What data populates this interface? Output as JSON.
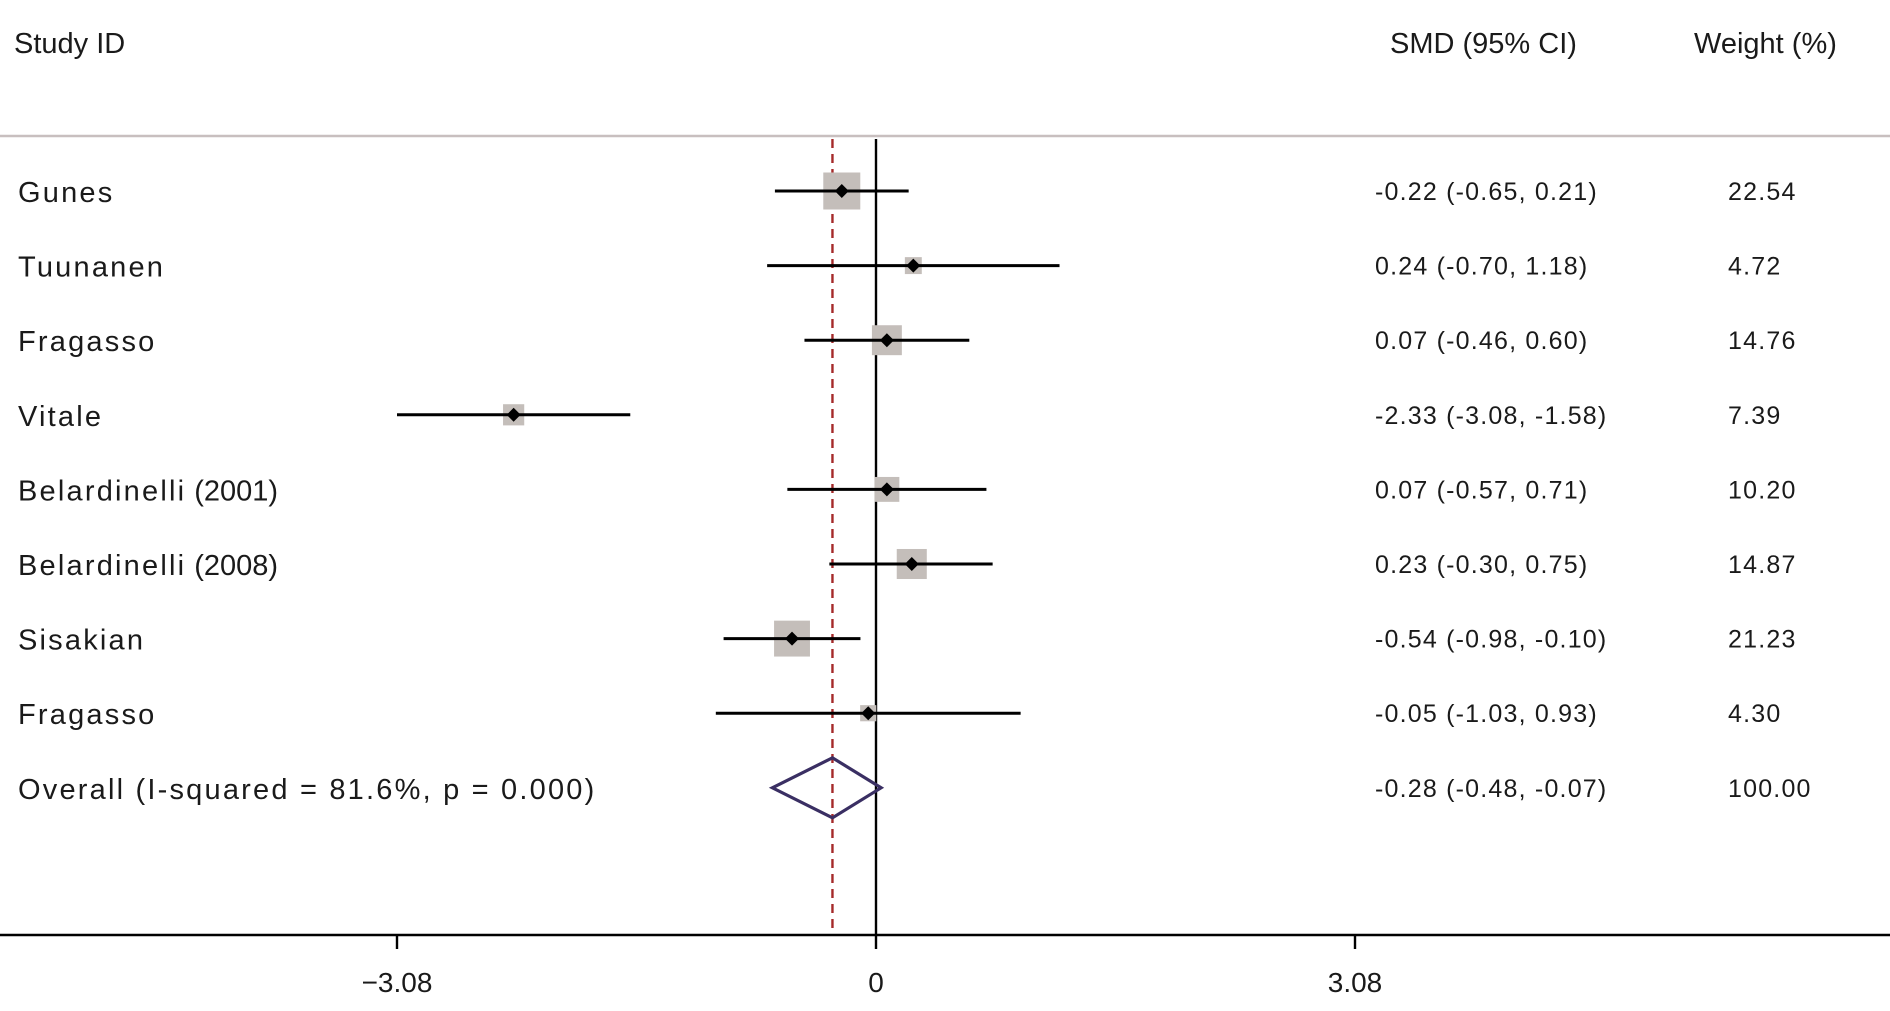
{
  "chart_data": {
    "type": "forest",
    "headers": {
      "study": "Study ID",
      "estimate": "SMD (95% CI)",
      "weight": "Weight (%)"
    },
    "studies": [
      {
        "label": "Gunes",
        "smd": -0.22,
        "lo": -0.65,
        "hi": 0.21,
        "ci_text": "-0.22 (-0.65, 0.21)",
        "weight": 22.54,
        "weight_text": "22.54"
      },
      {
        "label": "Tuunanen",
        "smd": 0.24,
        "lo": -0.7,
        "hi": 1.18,
        "ci_text": "0.24 (-0.70, 1.18)",
        "weight": 4.72,
        "weight_text": "4.72"
      },
      {
        "label": "Fragasso",
        "smd": 0.07,
        "lo": -0.46,
        "hi": 0.6,
        "ci_text": "0.07 (-0.46, 0.60)",
        "weight": 14.76,
        "weight_text": "14.76"
      },
      {
        "label": "Vitale",
        "smd": -2.33,
        "lo": -3.08,
        "hi": -1.58,
        "ci_text": "-2.33 (-3.08, -1.58)",
        "weight": 7.39,
        "weight_text": "7.39"
      },
      {
        "label": "Belardinelli",
        "year": "(2001)",
        "smd": 0.07,
        "lo": -0.57,
        "hi": 0.71,
        "ci_text": "0.07 (-0.57, 0.71)",
        "weight": 10.2,
        "weight_text": "10.20"
      },
      {
        "label": "Belardinelli",
        "year": "(2008)",
        "smd": 0.23,
        "lo": -0.3,
        "hi": 0.75,
        "ci_text": "0.23 (-0.30, 0.75)",
        "weight": 14.87,
        "weight_text": "14.87"
      },
      {
        "label": "Sisakian",
        "smd": -0.54,
        "lo": -0.98,
        "hi": -0.1,
        "ci_text": "-0.54 (-0.98, -0.10)",
        "weight": 21.23,
        "weight_text": "21.23"
      },
      {
        "label": "Fragasso",
        "smd": -0.05,
        "lo": -1.03,
        "hi": 0.93,
        "ci_text": "-0.05 (-1.03, 0.93)",
        "weight": 4.3,
        "weight_text": "4.30"
      }
    ],
    "overall": {
      "label": "Overall  (I-squared = 81.6%, p = 0.000)",
      "smd": -0.28,
      "lo": -0.48,
      "hi": -0.07,
      "ci_text": "-0.28 (-0.48, -0.07)",
      "weight": 100.0,
      "weight_text": "100.00"
    },
    "x_ticks": [
      {
        "value": -3.08,
        "label": "−3.08"
      },
      {
        "value": 0,
        "label": "0"
      },
      {
        "value": 3.08,
        "label": "3.08"
      }
    ],
    "null_line": 0,
    "colors": {
      "ci_line": "#000000",
      "weight_box": "#c4beba",
      "overall_diamond": "#3a2f63",
      "overall_line": "#a52a2a",
      "header_rule": "#c8bfbf"
    }
  }
}
